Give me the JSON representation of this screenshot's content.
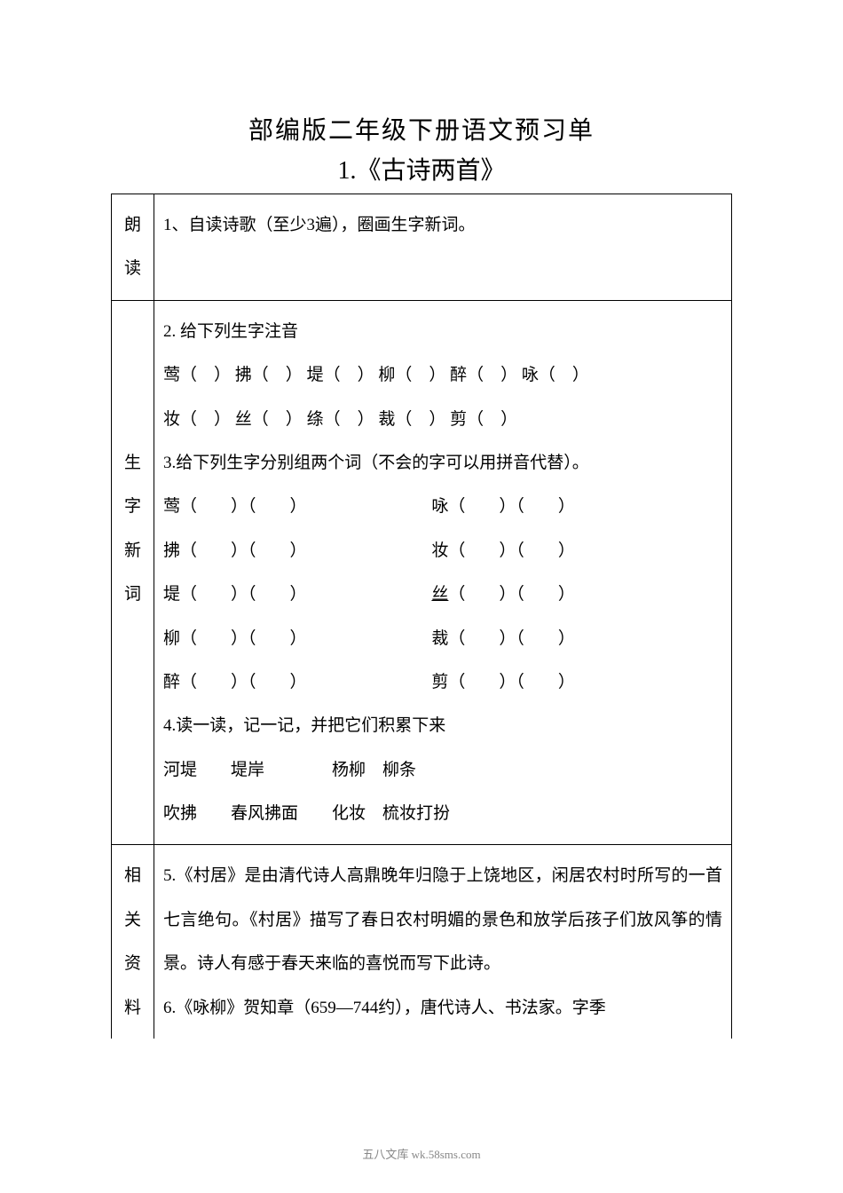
{
  "title": "部编版二年级下册语文预习单",
  "subtitle": "1.《古诗两首》",
  "rows": {
    "langdu": {
      "label_chars": [
        "朗",
        "读"
      ],
      "content": "1、自读诗歌（至少3遍），圈画生字新词。"
    },
    "shengzi": {
      "label_chars": [
        "生",
        "字",
        "新",
        "词"
      ],
      "q2_title": "2. 给下列生字注音",
      "q2_line1_chars": [
        "莺",
        "拂",
        "堤",
        "柳",
        "醉",
        "咏"
      ],
      "q2_line2_chars": [
        "妆",
        "丝",
        "绦",
        "裁",
        "剪"
      ],
      "q3_title": "3.给下列生字分别组两个词（不会的字可以用拼音代替）。",
      "q3_rows": [
        {
          "left": "莺",
          "right": "咏"
        },
        {
          "left": "拂",
          "right": "妆"
        },
        {
          "left": "堤",
          "right": "丝",
          "right_underline": true
        },
        {
          "left": "柳",
          "right": "裁"
        },
        {
          "left": "醉",
          "right": "剪"
        }
      ],
      "q4_title": "4.读一读，记一记，并把它们积累下来",
      "q4_line1": "河堤　　堤岸　　　　杨柳　柳条",
      "q4_line2": "吹拂　　春风拂面　　化妆　梳妆打扮"
    },
    "ziliao": {
      "label_chars": [
        "相",
        "关",
        "资",
        "料"
      ],
      "q5": "5.《村居》是由清代诗人高鼎晚年归隐于上饶地区，闲居农村时所写的一首七言绝句。《村居》描写了春日农村明媚的景色和放学后孩子们放风筝的情景。诗人有感于春天来临的喜悦而写下此诗。",
      "q6": "6.《咏柳》贺知章（659—744约），唐代诗人、书法家。字季"
    }
  },
  "footer": "五八文库 wk.58sms.com",
  "colors": {
    "background": "#ffffff",
    "border": "#000000",
    "text": "#000000",
    "footer": "#888888"
  },
  "fonts": {
    "title_size": 28,
    "body_size": 19,
    "footer_size": 13
  }
}
